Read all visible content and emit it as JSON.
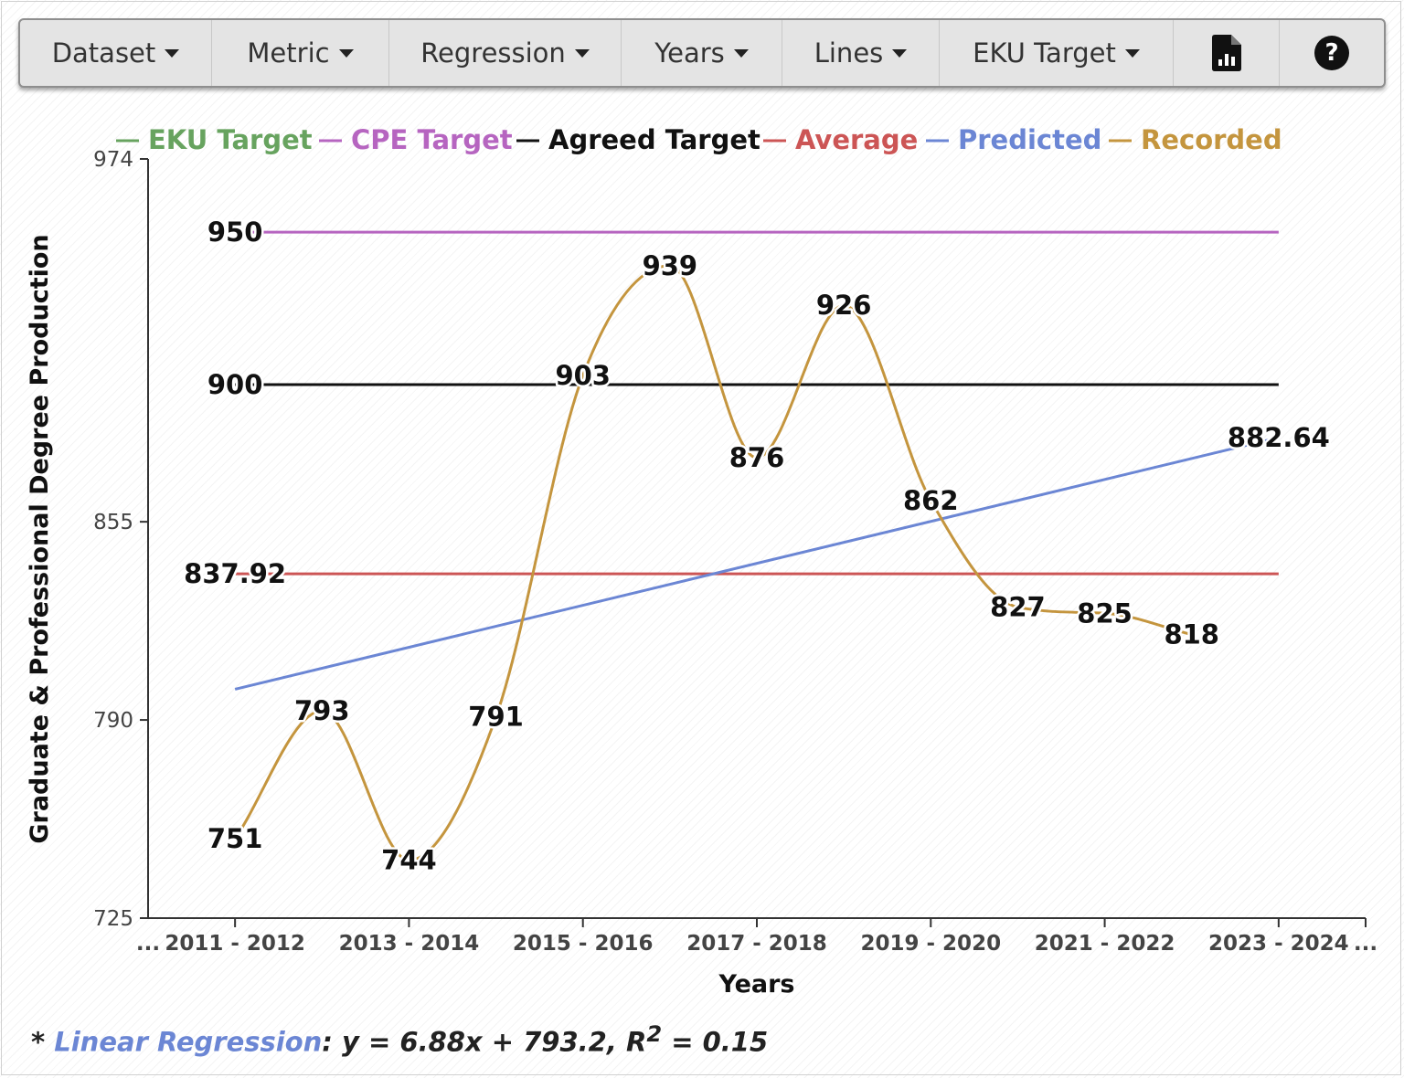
{
  "toolbar": {
    "items": [
      {
        "label": "Dataset"
      },
      {
        "label": "Metric"
      },
      {
        "label": "Regression"
      },
      {
        "label": "Years"
      },
      {
        "label": "Lines"
      },
      {
        "label": "EKU Target"
      }
    ],
    "report_icon": "report-chart-icon",
    "help_icon": "help-icon",
    "help_glyph": "?"
  },
  "colors": {
    "eku": "#67a35f",
    "cpe": "#b665c0",
    "agreed": "#111111",
    "average": "#cc5555",
    "predicted": "#6b86d4",
    "recorded": "#c4953e"
  },
  "chart_data": {
    "type": "line",
    "xlabel": "Years",
    "ylabel": "Graduate & Professional Degree Production",
    "y_ticks": [
      725,
      790,
      855,
      974
    ],
    "ylim": [
      725,
      974
    ],
    "x_tick_labels": [
      "...",
      "2011 - 2012",
      "2013 - 2014",
      "2015 - 2016",
      "2017 - 2018",
      "2019 - 2020",
      "2021 - 2022",
      "2023 - 2024",
      "..."
    ],
    "x_tick_years": [
      2011,
      2013,
      2015,
      2017,
      2019,
      2021,
      2023
    ],
    "x_range": [
      2010,
      2024
    ],
    "legend": [
      "EKU Target",
      "CPE Target",
      "Agreed Target",
      "Average",
      "Predicted",
      "Recorded"
    ],
    "legend_position": "top",
    "grid": false,
    "recorded": {
      "name": "Recorded",
      "x": [
        2011,
        2012,
        2013,
        2014,
        2015,
        2016,
        2017,
        2018,
        2019,
        2020,
        2021,
        2022
      ],
      "values": [
        751,
        793,
        744,
        791,
        903,
        939,
        876,
        926,
        862,
        827,
        825,
        818
      ],
      "labels": [
        "751",
        "793",
        "744",
        "791",
        "903",
        "939",
        "876",
        "926",
        "862",
        "827",
        "825",
        "818"
      ]
    },
    "predicted": {
      "name": "Predicted",
      "x": [
        2011,
        2023
      ],
      "values": [
        800.08,
        882.64
      ],
      "end_label": "882.64"
    },
    "cpe_target": {
      "name": "CPE Target",
      "value": 950,
      "label": "950",
      "x": [
        2011,
        2023
      ]
    },
    "agreed_target": {
      "name": "Agreed Target",
      "value": 900,
      "label": "900",
      "x": [
        2011,
        2023
      ]
    },
    "average": {
      "name": "Average",
      "value": 837.92,
      "label": "837.92",
      "x": [
        2011,
        2023
      ]
    },
    "regression": {
      "prefix": "* ",
      "link": "Linear Regression",
      "equation": ": y = 6.88x + 793.2, R",
      "sup": "2",
      "tail": " = 0.15"
    }
  }
}
